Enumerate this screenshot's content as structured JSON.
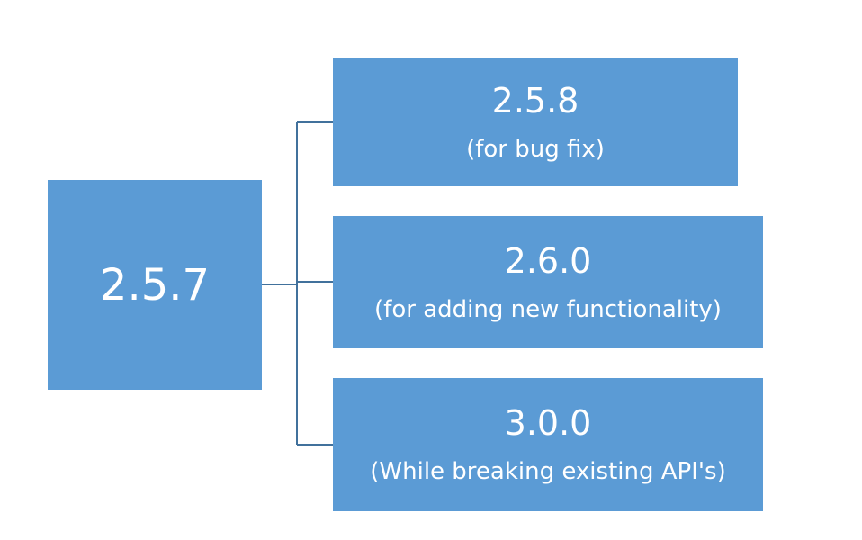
{
  "diagram": {
    "root": {
      "label": "2.5.7"
    },
    "children": [
      {
        "label": "2.5.8",
        "note": "(for bug fix)"
      },
      {
        "label": "2.6.0",
        "note": "(for adding new functionality)"
      },
      {
        "label": "3.0.0",
        "note": "(While breaking existing API's)"
      }
    ],
    "colors": {
      "box_fill": "#5b9bd5",
      "box_text": "#ffffff",
      "connector": "#41719c"
    }
  }
}
